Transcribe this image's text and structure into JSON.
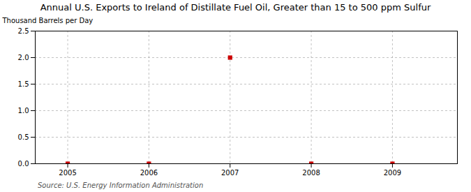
{
  "chart_data": {
    "type": "scatter",
    "title": "Annual U.S. Exports to Ireland of Distillate Fuel Oil, Greater than 15 to 500 ppm Sulfur",
    "ylabel": "Thousand Barrels per Day",
    "source": "Source: U.S. Energy Information Administration",
    "x": [
      2005,
      2006,
      2007,
      2008,
      2009
    ],
    "values": [
      0.0,
      0.0,
      2.0,
      0.0,
      0.0
    ],
    "color": "#cc0000",
    "marker": "square",
    "xlim": [
      2004.6,
      2009.8
    ],
    "ylim": [
      0,
      2.5
    ],
    "xticks": [
      2005,
      2006,
      2007,
      2008,
      2009
    ],
    "yticks": [
      {
        "value": 0.0,
        "label": "0.0"
      },
      {
        "value": 0.5,
        "label": "0.5"
      },
      {
        "value": 1.0,
        "label": "1.0"
      },
      {
        "value": 1.5,
        "label": "1.5"
      },
      {
        "value": 2.0,
        "label": "2.0"
      },
      {
        "value": 2.5,
        "label": "2.5"
      }
    ],
    "grid": true
  }
}
